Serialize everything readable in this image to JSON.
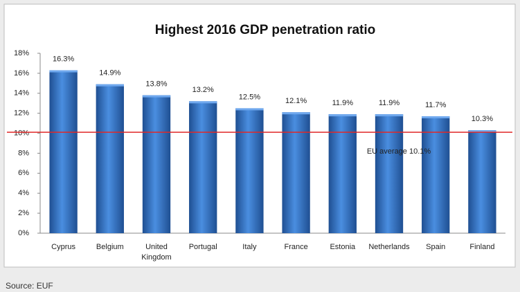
{
  "chart_data": {
    "type": "bar",
    "title": "Highest 2016 GDP penetration ratio",
    "categories": [
      "Cyprus",
      "Belgium",
      "United Kingdom",
      "Portugal",
      "Italy",
      "France",
      "Estonia",
      "Netherlands",
      "Spain",
      "Finland"
    ],
    "values": [
      16.3,
      14.9,
      13.8,
      13.2,
      12.5,
      12.1,
      11.9,
      11.9,
      11.7,
      10.3
    ],
    "value_labels": [
      "16.3%",
      "14.9%",
      "13.8%",
      "13.2%",
      "12.5%",
      "12.1%",
      "11.9%",
      "11.9%",
      "11.7%",
      "10.3%"
    ],
    "color": "#3a78c8",
    "ylim": [
      0,
      18
    ],
    "yticks": [
      {
        "value": 0,
        "label": "0%"
      },
      {
        "value": 2,
        "label": "2%"
      },
      {
        "value": 4,
        "label": "4%"
      },
      {
        "value": 6,
        "label": "6%"
      },
      {
        "value": 8,
        "label": "8%"
      },
      {
        "value": 10,
        "label": "10%"
      },
      {
        "value": 12,
        "label": "12%"
      },
      {
        "value": 14,
        "label": "14%"
      },
      {
        "value": 16,
        "label": "16%"
      },
      {
        "value": 18,
        "label": "18%"
      }
    ],
    "reference_line": {
      "value": 10.1,
      "label": "EU average 10.1%",
      "color": "#e02828"
    },
    "source": "Source: EUF"
  }
}
